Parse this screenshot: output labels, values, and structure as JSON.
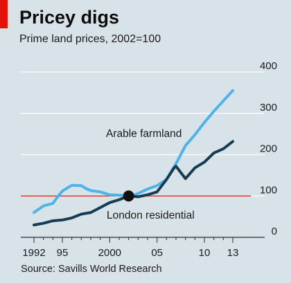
{
  "header": {
    "title": "Pricey digs",
    "subtitle": "Prime land prices, 2002=100"
  },
  "footer": {
    "source": "Source: Savills World Research"
  },
  "colors": {
    "background": "#d8e3e9",
    "accent_tab": "#e3120b",
    "farmland": "#4fb3e8",
    "london": "#173c52",
    "baseline": "#e3120b",
    "grid": "#ffffff"
  },
  "chart_data": {
    "type": "line",
    "title": "Pricey digs",
    "subtitle": "Prime land prices, 2002=100",
    "xlabel": "",
    "ylabel": "",
    "xlim": [
      1991.5,
      2014
    ],
    "ylim": [
      0,
      400
    ],
    "x_ticks": [
      {
        "value": 1992,
        "label": "1992"
      },
      {
        "value": 1995,
        "label": "95"
      },
      {
        "value": 2000,
        "label": "2000"
      },
      {
        "value": 2005,
        "label": "05"
      },
      {
        "value": 2010,
        "label": "10"
      },
      {
        "value": 2013,
        "label": "13"
      }
    ],
    "y_ticks": [
      {
        "value": 0,
        "label": "0"
      },
      {
        "value": 100,
        "label": "100"
      },
      {
        "value": 200,
        "label": "200"
      },
      {
        "value": 300,
        "label": "300"
      },
      {
        "value": 400,
        "label": "400"
      }
    ],
    "y_axis_side": "right",
    "grid": true,
    "reference_line": {
      "value": 100
    },
    "marker": {
      "x": 2002,
      "y": 100
    },
    "series": [
      {
        "name": "Arable farmland",
        "color": "#4fb3e8",
        "points": [
          [
            1992.0,
            60
          ],
          [
            1992.5,
            68
          ],
          [
            1993.0,
            76
          ],
          [
            1994.0,
            82
          ],
          [
            1994.5,
            98
          ],
          [
            1995.0,
            112
          ],
          [
            1996.0,
            126
          ],
          [
            1997.0,
            125
          ],
          [
            1997.5,
            118
          ],
          [
            1998.0,
            113
          ],
          [
            1999.0,
            110
          ],
          [
            2000.0,
            103
          ],
          [
            2001.0,
            102
          ],
          [
            2002.0,
            100
          ],
          [
            2002.5,
            102
          ],
          [
            2003.0,
            106
          ],
          [
            2004.0,
            117
          ],
          [
            2005.0,
            125
          ],
          [
            2006.0,
            140
          ],
          [
            2007.0,
            178
          ],
          [
            2008.0,
            222
          ],
          [
            2009.0,
            248
          ],
          [
            2010.0,
            278
          ],
          [
            2011.0,
            305
          ],
          [
            2012.0,
            330
          ],
          [
            2013.0,
            355
          ]
        ]
      },
      {
        "name": "London residential",
        "color": "#173c52",
        "points": [
          [
            1992.0,
            30
          ],
          [
            1993.0,
            34
          ],
          [
            1994.0,
            40
          ],
          [
            1995.0,
            42
          ],
          [
            1996.0,
            47
          ],
          [
            1997.0,
            56
          ],
          [
            1998.0,
            60
          ],
          [
            1999.0,
            72
          ],
          [
            2000.0,
            84
          ],
          [
            2001.0,
            91
          ],
          [
            2002.0,
            100
          ],
          [
            2003.0,
            98
          ],
          [
            2004.0,
            103
          ],
          [
            2005.0,
            110
          ],
          [
            2006.0,
            140
          ],
          [
            2006.8,
            168
          ],
          [
            2007.0,
            172
          ],
          [
            2008.0,
            142
          ],
          [
            2009.0,
            168
          ],
          [
            2010.0,
            182
          ],
          [
            2011.0,
            204
          ],
          [
            2012.0,
            214
          ],
          [
            2013.0,
            232
          ]
        ]
      }
    ],
    "series_labels": [
      {
        "text": "Arable farmland",
        "series": "Arable farmland"
      },
      {
        "text": "London residential",
        "series": "London residential"
      }
    ]
  }
}
